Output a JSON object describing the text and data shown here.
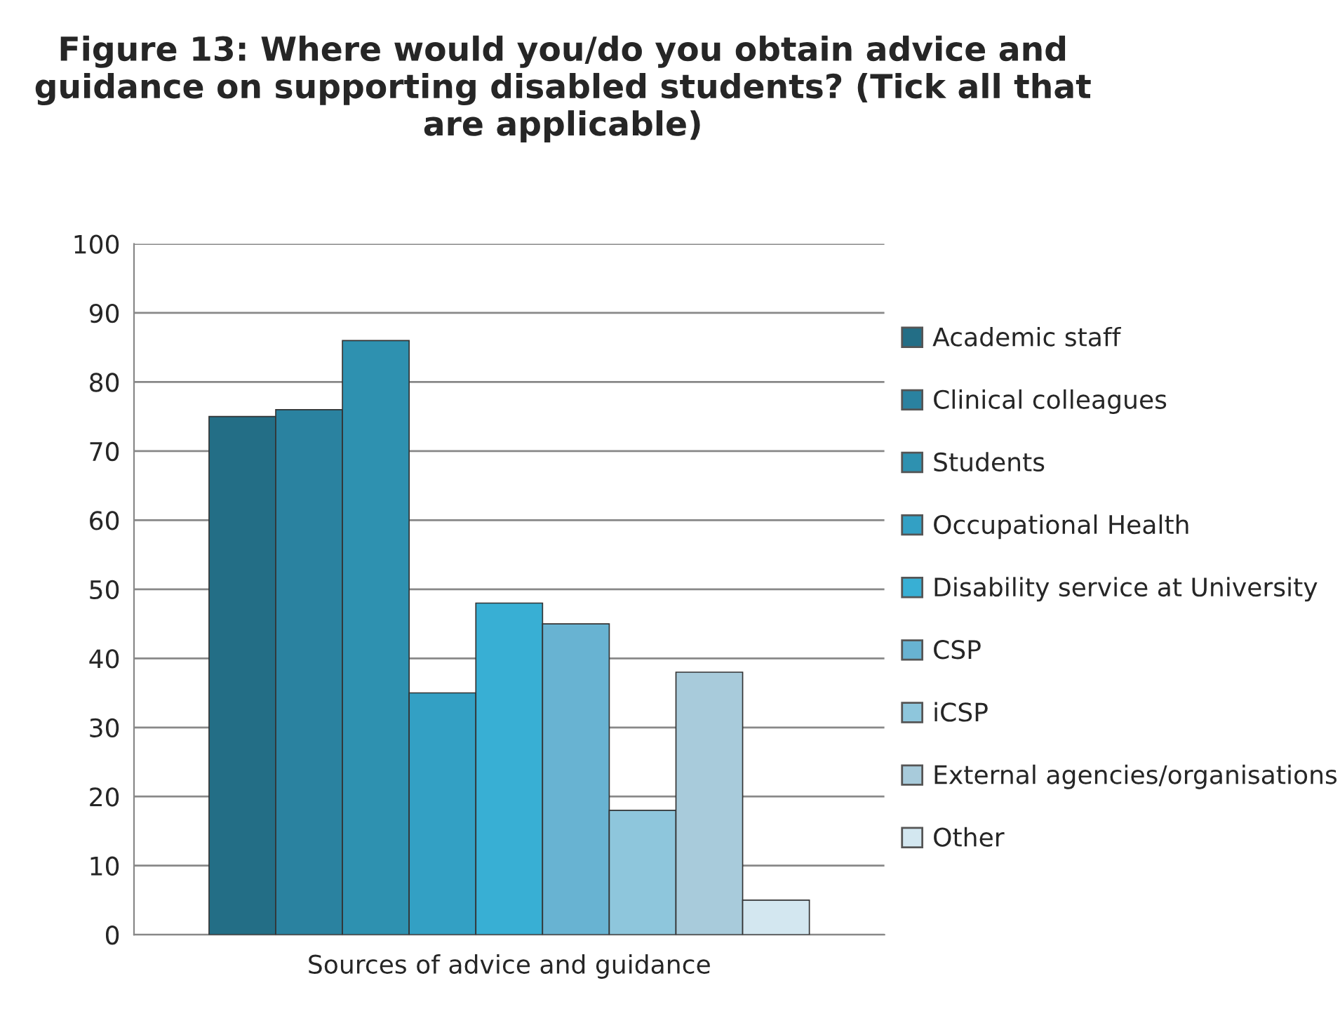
{
  "chart_data": {
    "type": "bar",
    "title": "Figure 13: Where would you/do you obtain advice and guidance on supporting disabled students? (Tick all that are applicable)",
    "categories": [
      "Sources of advice and guidance"
    ],
    "series": [
      {
        "name": "Academic staff",
        "color": "#236e86",
        "values": [
          75
        ]
      },
      {
        "name": "Clinical colleagues",
        "color": "#2a82a0",
        "values": [
          76
        ]
      },
      {
        "name": "Students",
        "color": "#2e91b0",
        "values": [
          86
        ]
      },
      {
        "name": "Occupational Health",
        "color": "#33a0c4",
        "values": [
          35
        ]
      },
      {
        "name": "Disability service at University",
        "color": "#38afd4",
        "values": [
          48
        ]
      },
      {
        "name": "CSP",
        "color": "#68b3d2",
        "values": [
          45
        ]
      },
      {
        "name": "iCSP",
        "color": "#8ec6dc",
        "values": [
          18
        ]
      },
      {
        "name": "External agencies/organisations",
        "color": "#a8cbdb",
        "values": [
          38
        ]
      },
      {
        "name": "Other",
        "color": "#d3e7f0",
        "values": [
          5
        ]
      }
    ],
    "ylim": [
      0,
      100
    ],
    "yticks": [
      0,
      10,
      20,
      30,
      40,
      50,
      60,
      70,
      80,
      90,
      100
    ],
    "grid": "y",
    "legend": "right"
  }
}
